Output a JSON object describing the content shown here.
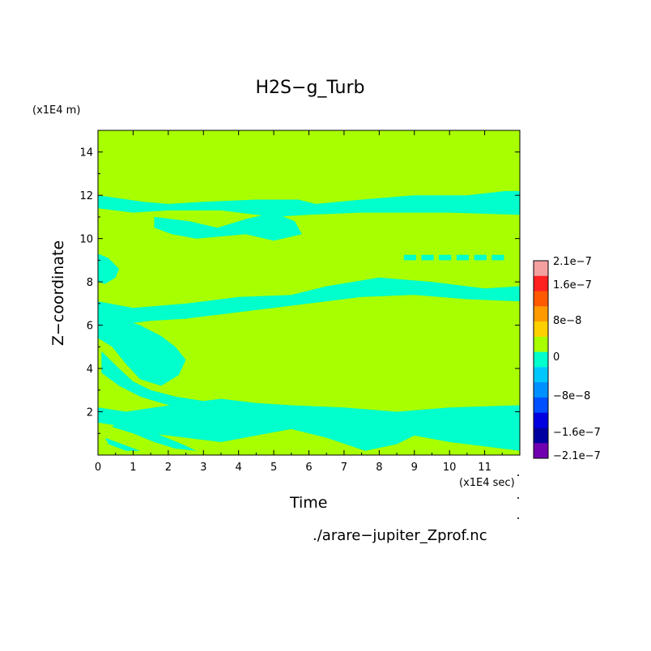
{
  "chart_data": {
    "type": "heatmap",
    "title": "H2S−g_Turb",
    "xlabel": "Time",
    "ylabel": "Z−coordinate",
    "x_units": "(x1E4 sec)",
    "y_units": "(x1E4 m)",
    "xlim": [
      0,
      12
    ],
    "ylim": [
      0,
      15
    ],
    "x_ticks": [
      "0",
      "1",
      "2",
      "3",
      "4",
      "5",
      "6",
      "7",
      "8",
      "9",
      "10",
      "11"
    ],
    "y_ticks": [
      "2",
      "4",
      "6",
      "8",
      "10",
      "12",
      "14"
    ],
    "background_value_level": "0",
    "colorbar": {
      "levels": [
        "2.1e−7",
        "1.6e−7",
        "8e−8",
        "0",
        "−8e−8",
        "−1.6e−7",
        "−2.1e−7"
      ],
      "colors": [
        "#f4a0a0",
        "#ff2020",
        "#ff5a00",
        "#ff9a00",
        "#ffd000",
        "#a8ff00",
        "#00ffcc",
        "#00c8ff",
        "#0090ff",
        "#0050ff",
        "#0000e0",
        "#0000a0",
        "#7000b0"
      ]
    },
    "negative_bands": [
      {
        "x_start": 0.0,
        "x_end": 12.0,
        "z_center": 11.7,
        "label": "upper band near z≈11.5"
      },
      {
        "x_start": 2.0,
        "x_end": 6.0,
        "z_center": 10.3,
        "label": "band near z≈10"
      },
      {
        "x_start": 0.0,
        "x_end": 12.0,
        "z_center": 7.3,
        "label": "band near z≈7"
      },
      {
        "x_start": 0.0,
        "x_end": 12.0,
        "z_center": 2.0,
        "label": "lower turbulent region z≈0–3"
      }
    ]
  },
  "source_file": "./arare−jupiter_Zprof.nc",
  "colors": {
    "field_zero": "#a8ff00",
    "field_negative": "#00ffcc"
  }
}
